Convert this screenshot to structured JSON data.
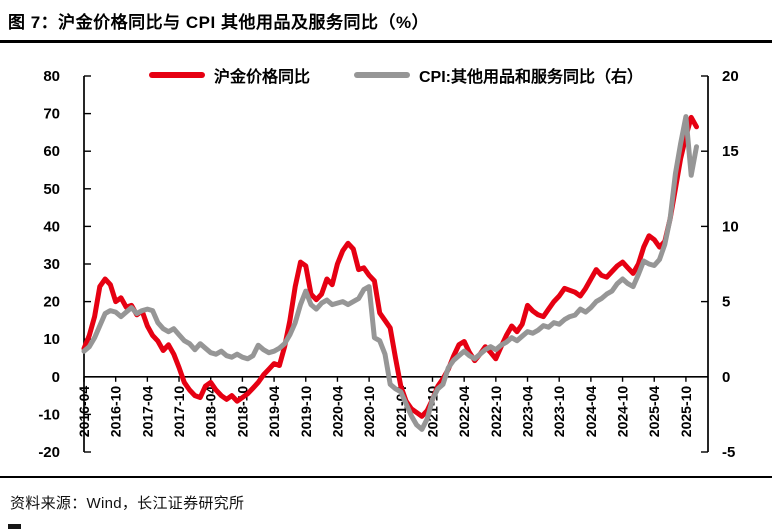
{
  "header": {
    "title": "图 7：沪金价格同比与 CPI 其他用品及服务同比（%）"
  },
  "legend": [
    {
      "label": "沪金价格同比",
      "color": "#e60012"
    },
    {
      "label": "CPI:其他用品和服务同比（右）",
      "color": "#969696"
    }
  ],
  "footer": {
    "source": "资料来源：Wind，长江证券研究所"
  },
  "chart_data": {
    "type": "line",
    "title": "图 7：沪金价格同比与 CPI 其他用品及服务同比（%）",
    "grid": false,
    "legend_position": "top",
    "x_tick_rotation": 90,
    "x_tick_labels": [
      "2016-04",
      "2016-10",
      "2017-04",
      "2017-10",
      "2018-04",
      "2018-10",
      "2019-04",
      "2019-10",
      "2020-04",
      "2020-10",
      "2021-04",
      "2021-10",
      "2022-04",
      "2022-10",
      "2023-04",
      "2023-10",
      "2024-04",
      "2024-10",
      "2025-04",
      "2025-10"
    ],
    "left_axis": {
      "min": -20,
      "max": 80,
      "step": 10,
      "ticks": [
        80,
        70,
        60,
        50,
        40,
        30,
        20,
        10,
        0,
        -10,
        -20
      ]
    },
    "right_axis": {
      "min": -5,
      "max": 20,
      "step": 5,
      "ticks": [
        20,
        15,
        10,
        5,
        0,
        -5
      ]
    },
    "categories": [
      "2016-04",
      "2016-05",
      "2016-06",
      "2016-07",
      "2016-08",
      "2016-09",
      "2016-10",
      "2016-11",
      "2016-12",
      "2017-01",
      "2017-02",
      "2017-03",
      "2017-04",
      "2017-05",
      "2017-06",
      "2017-07",
      "2017-08",
      "2017-09",
      "2017-10",
      "2017-11",
      "2017-12",
      "2018-01",
      "2018-02",
      "2018-03",
      "2018-04",
      "2018-05",
      "2018-06",
      "2018-07",
      "2018-08",
      "2018-09",
      "2018-10",
      "2018-11",
      "2018-12",
      "2019-01",
      "2019-02",
      "2019-03",
      "2019-04",
      "2019-05",
      "2019-06",
      "2019-07",
      "2019-08",
      "2019-09",
      "2019-10",
      "2019-11",
      "2019-12",
      "2020-01",
      "2020-02",
      "2020-03",
      "2020-04",
      "2020-05",
      "2020-06",
      "2020-07",
      "2020-08",
      "2020-09",
      "2020-10",
      "2020-11",
      "2020-12",
      "2021-01",
      "2021-02",
      "2021-03",
      "2021-04",
      "2021-05",
      "2021-06",
      "2021-07",
      "2021-08",
      "2021-09",
      "2021-10",
      "2021-11",
      "2021-12",
      "2022-01",
      "2022-02",
      "2022-03",
      "2022-04",
      "2022-05",
      "2022-06",
      "2022-07",
      "2022-08",
      "2022-09",
      "2022-10",
      "2022-11",
      "2022-12",
      "2023-01",
      "2023-02",
      "2023-03",
      "2023-04",
      "2023-05",
      "2023-06",
      "2023-07",
      "2023-08",
      "2023-09",
      "2023-10",
      "2023-11",
      "2023-12",
      "2024-01",
      "2024-02",
      "2024-03",
      "2024-04",
      "2024-05",
      "2024-06",
      "2024-07",
      "2024-08",
      "2024-09",
      "2024-10",
      "2024-11",
      "2024-12",
      "2025-01",
      "2025-02",
      "2025-03",
      "2025-04",
      "2025-05",
      "2025-06",
      "2025-07",
      "2025-08",
      "2025-09",
      "2025-10",
      "2025-11",
      "2025-12"
    ],
    "series": [
      {
        "name": "沪金价格同比",
        "axis": "left",
        "color": "#e60012",
        "width": 5,
        "values": [
          7.5,
          11,
          16,
          24,
          26,
          24.5,
          20,
          21,
          18.5,
          19,
          16.5,
          17.5,
          13.5,
          11,
          9.5,
          7,
          8.5,
          6,
          2.5,
          -1.5,
          -3.5,
          -5,
          -5.5,
          -2.5,
          -1.5,
          -3.5,
          -5,
          -6,
          -5,
          -6.5,
          -5.5,
          -4.5,
          -3,
          -1.5,
          0.5,
          2,
          3.5,
          3,
          8,
          15,
          24,
          30.5,
          29.5,
          22,
          20.5,
          22,
          26,
          24.5,
          30,
          33.5,
          35.5,
          34,
          28.5,
          29,
          27,
          25.5,
          17,
          15,
          13,
          5,
          -2.5,
          -6.5,
          -8.5,
          -9.5,
          -10.5,
          -9,
          -6,
          -2.5,
          -0.5,
          2,
          5.5,
          8.5,
          9.4,
          6.5,
          4.3,
          6,
          8,
          6.5,
          4.8,
          8,
          11,
          13.5,
          12,
          14,
          19,
          17.5,
          16.5,
          16,
          18,
          20,
          21.5,
          23.5,
          23,
          22.5,
          21.5,
          23.5,
          26,
          28.5,
          27,
          26.5,
          28,
          29.5,
          30.5,
          29,
          27.5,
          30,
          34.5,
          37.5,
          36.5,
          34.5,
          36,
          42,
          50,
          58,
          64,
          69,
          66.5
        ]
      },
      {
        "name": "CPI:其他用品和服务同比（右）",
        "axis": "right",
        "color": "#969696",
        "width": 5,
        "values": [
          1.7,
          2,
          2.6,
          3.4,
          4.2,
          4.4,
          4.3,
          4,
          4.3,
          4.6,
          4.2,
          4.4,
          4.5,
          4.4,
          3.6,
          3.2,
          3,
          3.2,
          2.8,
          2.4,
          2.2,
          1.8,
          2.2,
          1.9,
          1.6,
          1.5,
          1.7,
          1.4,
          1.3,
          1.5,
          1.3,
          1.2,
          1.4,
          2.1,
          1.8,
          1.6,
          1.7,
          1.9,
          2.2,
          2.8,
          3.6,
          4.8,
          5.7,
          4.8,
          4.5,
          4.9,
          5.1,
          4.8,
          4.9,
          5,
          4.8,
          5,
          5.2,
          5.8,
          6,
          2.6,
          2.4,
          1.5,
          -0.5,
          -0.8,
          -1,
          -1.8,
          -2.6,
          -3.2,
          -3.5,
          -2.8,
          -1.5,
          -0.8,
          -0.5,
          0.6,
          1.1,
          1.4,
          1.7,
          1.4,
          1.2,
          1.5,
          1.8,
          2,
          1.8,
          2.1,
          2.3,
          2.6,
          2.4,
          2.7,
          3,
          2.9,
          3.1,
          3.4,
          3.3,
          3.6,
          3.5,
          3.8,
          4,
          4.1,
          4.5,
          4.3,
          4.6,
          5,
          5.2,
          5.5,
          5.7,
          6.2,
          6.5,
          6.2,
          6,
          6.8,
          7.7,
          7.5,
          7.4,
          7.8,
          8.8,
          10.5,
          13.5,
          15.5,
          17.3,
          13.4,
          15.3
        ]
      }
    ]
  }
}
